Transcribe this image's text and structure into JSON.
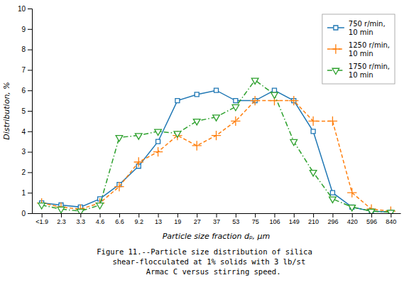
{
  "chart_data": {
    "type": "line",
    "categories": [
      "<1.9",
      "2.3",
      "3.3",
      "4.6",
      "6.6",
      "9.2",
      "13",
      "19",
      "27",
      "37",
      "53",
      "75",
      "106",
      "149",
      "210",
      "296",
      "420",
      "596",
      "840"
    ],
    "series": [
      {
        "name": "750 r/min,\n10 min",
        "marker": "square",
        "line_style": "solid",
        "values": [
          0.5,
          0.4,
          0.3,
          0.7,
          1.4,
          2.3,
          3.5,
          5.5,
          5.8,
          6.0,
          5.5,
          5.5,
          6.0,
          5.5,
          4.0,
          1.0,
          0.3,
          0.1,
          0.05
        ]
      },
      {
        "name": "1250 r/min,\n10 min",
        "marker": "plus",
        "line_style": "dashed",
        "values": [
          0.5,
          0.3,
          0.2,
          0.5,
          1.3,
          2.5,
          3.0,
          3.8,
          3.3,
          3.8,
          4.5,
          5.5,
          5.5,
          5.5,
          4.5,
          4.5,
          1.0,
          0.2,
          0.1
        ]
      },
      {
        "name": "1750 r/min,\n10 min",
        "marker": "triangle-down",
        "line_style": "dashdot",
        "values": [
          0.4,
          0.2,
          0.1,
          0.4,
          3.7,
          3.8,
          4.0,
          3.9,
          4.5,
          4.7,
          5.2,
          6.5,
          5.8,
          3.5,
          2.0,
          0.7,
          0.3,
          0.1,
          0.05
        ]
      }
    ],
    "xlabel": "Particle size fraction dₚ, μm",
    "ylabel": "Distribution, %",
    "ylim": [
      0,
      10
    ],
    "yticks": [
      0,
      1,
      2,
      3,
      4,
      5,
      6,
      7,
      8,
      9,
      10
    ],
    "annotations": [
      "Figure 11.--Particle size distribution of silica",
      "  shear-flocculated at 1% solids with 3 lb/st",
      "    Armac C versus stirring speed."
    ],
    "grid": false,
    "legend": "upper right"
  }
}
